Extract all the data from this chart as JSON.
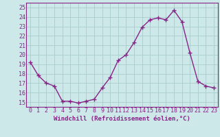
{
  "x": [
    0,
    1,
    2,
    3,
    4,
    5,
    6,
    7,
    8,
    9,
    10,
    11,
    12,
    13,
    14,
    15,
    16,
    17,
    18,
    19,
    20,
    21,
    22,
    23
  ],
  "y": [
    19.2,
    17.8,
    17.0,
    16.7,
    15.1,
    15.1,
    14.9,
    15.1,
    15.3,
    16.5,
    17.6,
    19.4,
    20.0,
    21.3,
    22.9,
    23.7,
    23.9,
    23.7,
    24.7,
    23.5,
    20.2,
    17.2,
    16.7,
    16.5
  ],
  "line_color": "#882288",
  "marker": "+",
  "marker_size": 4,
  "linewidth": 1.0,
  "xlabel": "Windchill (Refroidissement éolien,°C)",
  "xlabel_fontsize": 6.5,
  "ylim": [
    14.5,
    25.5
  ],
  "xlim": [
    -0.5,
    23.5
  ],
  "yticks": [
    15,
    16,
    17,
    18,
    19,
    20,
    21,
    22,
    23,
    24,
    25
  ],
  "xticks": [
    0,
    1,
    2,
    3,
    4,
    5,
    6,
    7,
    8,
    9,
    10,
    11,
    12,
    13,
    14,
    15,
    16,
    17,
    18,
    19,
    20,
    21,
    22,
    23
  ],
  "bg_color": "#cce8e8",
  "grid_color": "#aacccc",
  "tick_fontsize": 6.0,
  "border_color": "#882288"
}
